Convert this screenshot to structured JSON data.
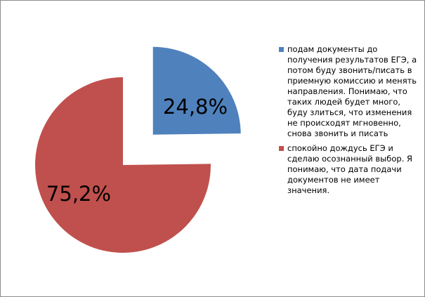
{
  "chart_data": {
    "type": "pie",
    "start_angle_deg": 0,
    "direction": "clockwise",
    "exploded": true,
    "slices": [
      {
        "label": "подам документы до получения результатов ЕГЭ, а потом буду звонить/писать в приемную комиссию и менять направления. Понимаю, что таких людей будет много, буду злиться, что изменения не происходят мгновенно, снова звонить и писать",
        "value": 24.8,
        "value_label": "24,8%",
        "color": "#4f81bd"
      },
      {
        "label": "спокойно дождусь ЕГЭ и сделаю осознанный выбор. Я понимаю, что дата подачи документов не имеет значения.",
        "value": 75.2,
        "value_label": "75,2%",
        "color": "#c0504d"
      }
    ],
    "legend_position": "right"
  }
}
